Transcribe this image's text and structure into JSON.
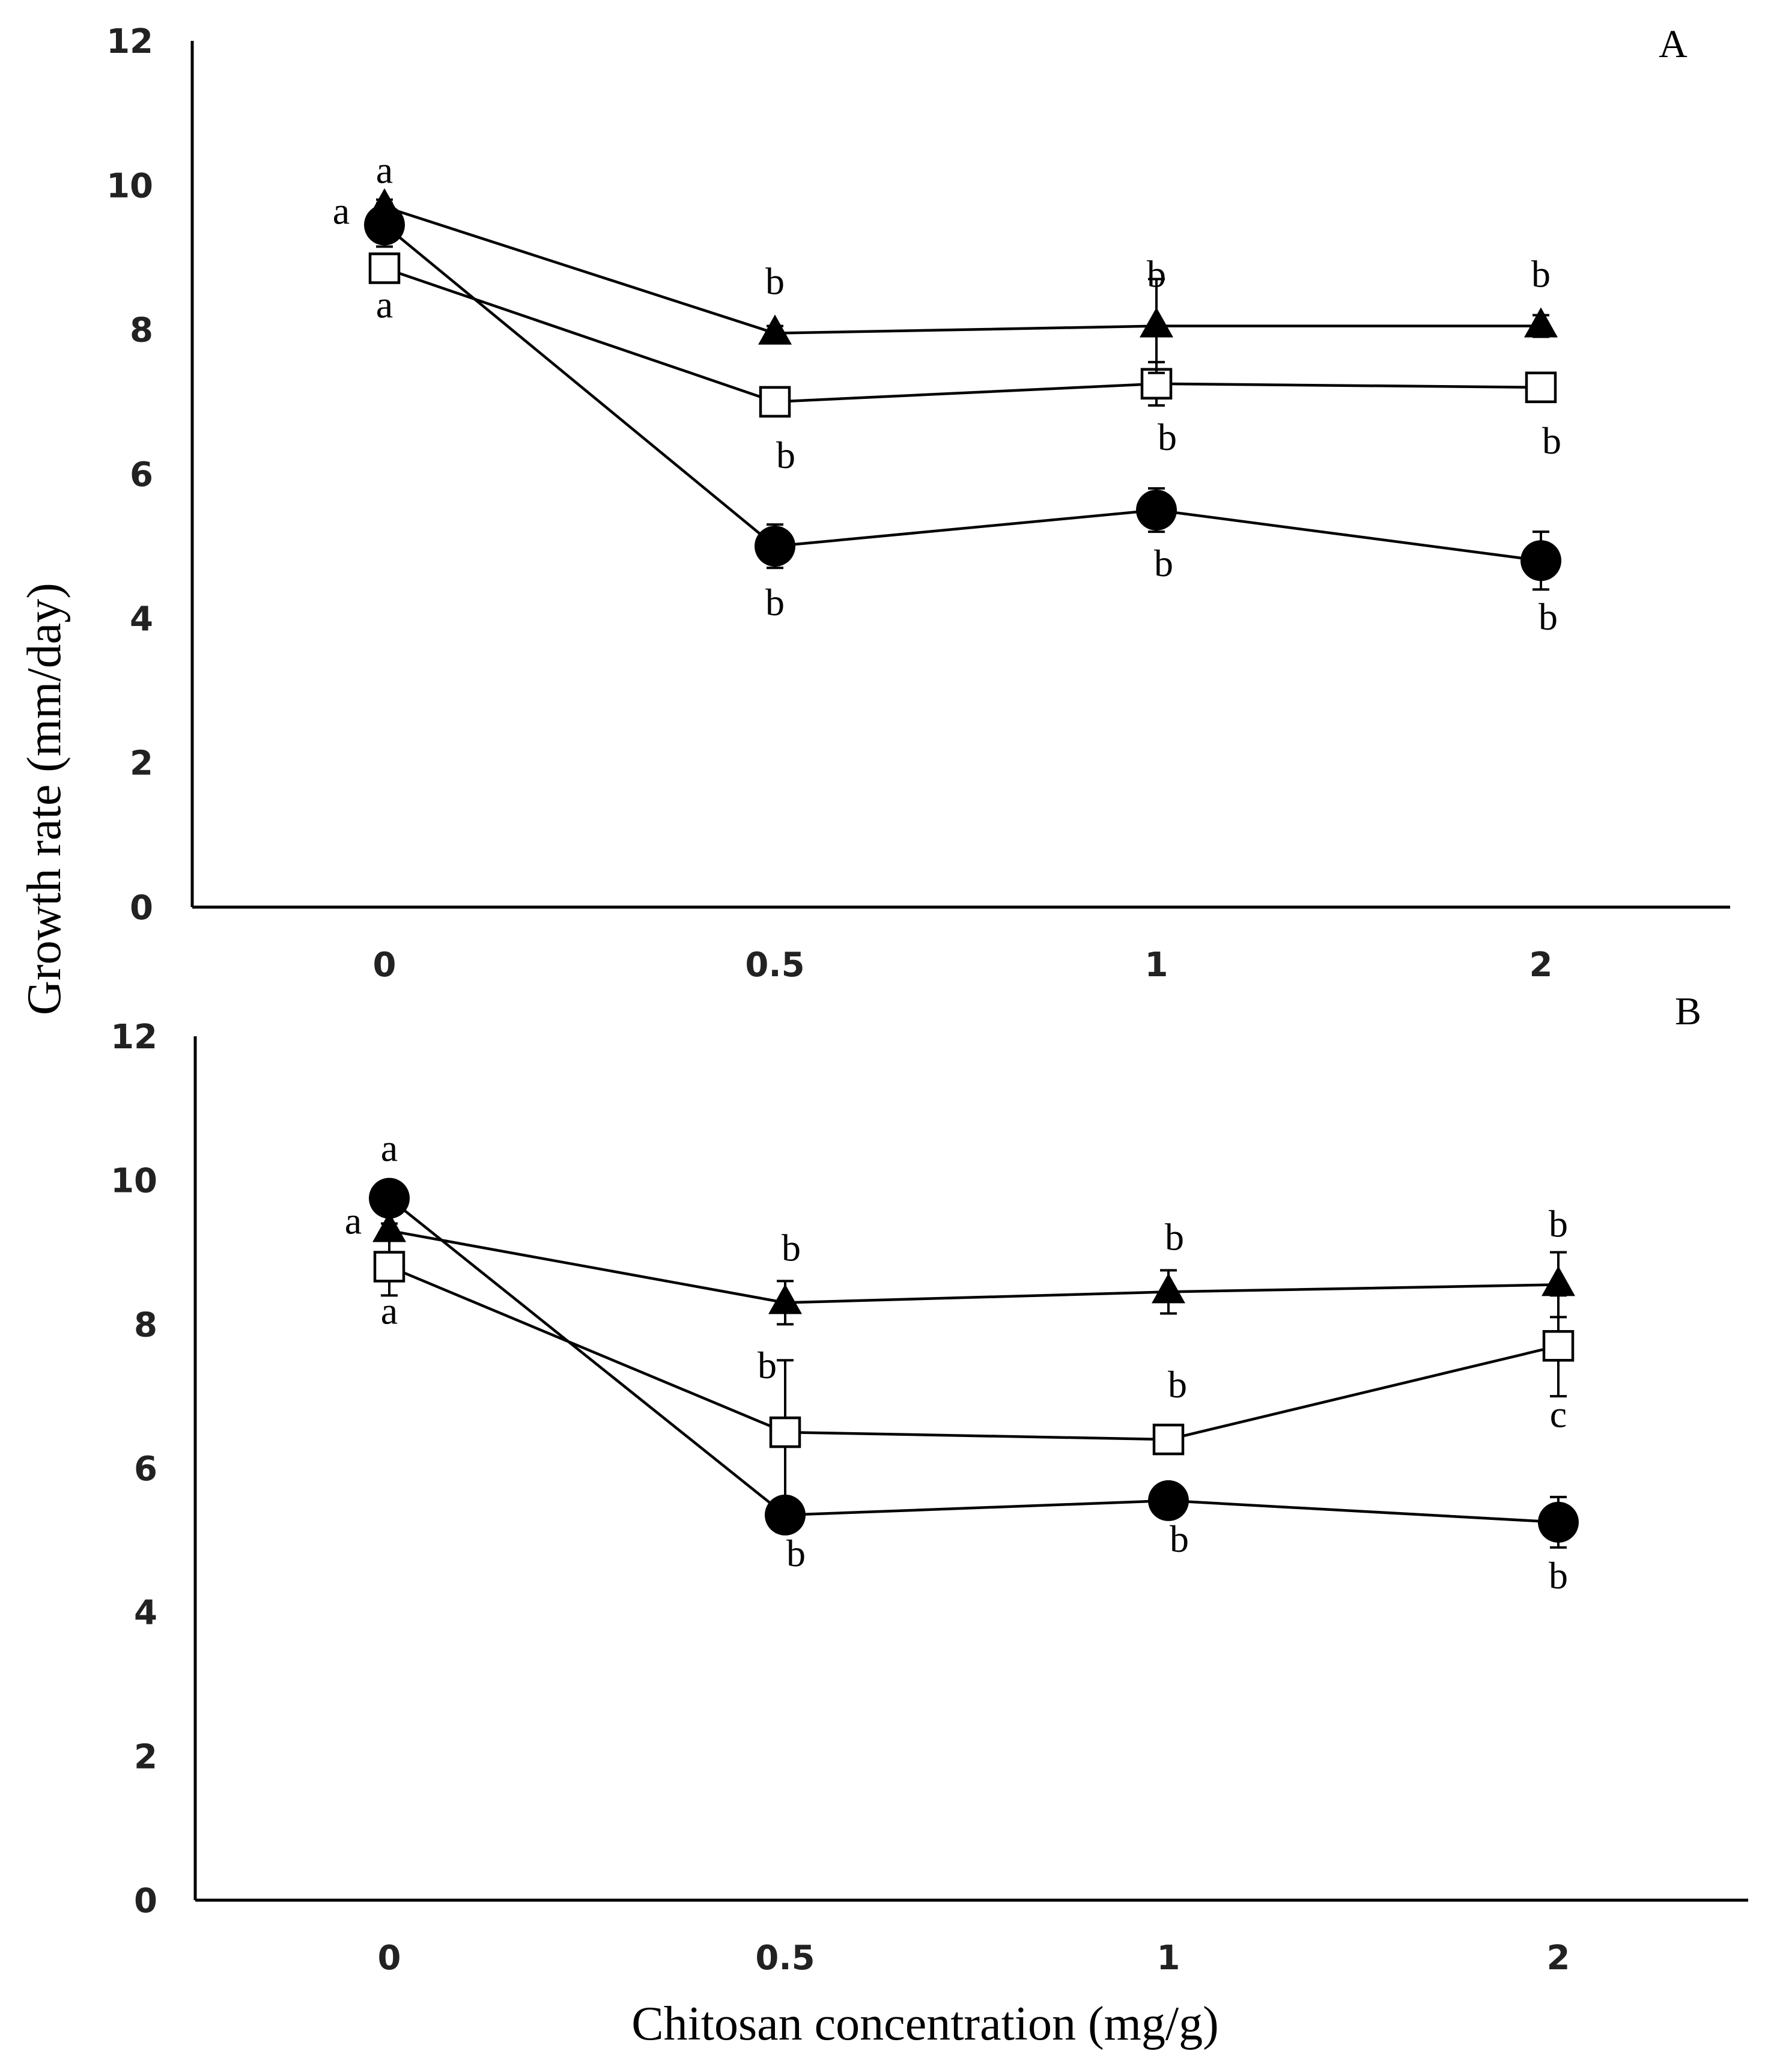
{
  "chart_data": [
    {
      "type": "line",
      "panel_label": "A",
      "categories": [
        "0",
        "0.5",
        "1",
        "2"
      ],
      "ylim": [
        0,
        12
      ],
      "yticks": [
        "0",
        "2",
        "4",
        "6",
        "8",
        "10",
        "12"
      ],
      "series": [
        {
          "name": "filled-circle",
          "marker": "circle",
          "values": [
            9.45,
            5.0,
            5.5,
            4.8
          ],
          "err": [
            0.3,
            0.3,
            0.3,
            0.4
          ],
          "letters": [
            "a",
            "b",
            "b",
            "b"
          ]
        },
        {
          "name": "open-square",
          "marker": "square",
          "values": [
            8.85,
            7.0,
            7.25,
            7.2
          ],
          "err": [
            0.15,
            0.1,
            0.3,
            0.1
          ],
          "letters": [
            "a",
            "b",
            "b",
            "b"
          ]
        },
        {
          "name": "filled-triangle",
          "marker": "triangle",
          "values": [
            9.7,
            7.95,
            8.05,
            8.05
          ],
          "err": [
            0.1,
            0.1,
            0.65,
            0.15
          ],
          "letters": [
            "a",
            "b",
            "b",
            "b"
          ]
        }
      ]
    },
    {
      "type": "line",
      "panel_label": "B",
      "categories": [
        "0",
        "0.5",
        "1",
        "2"
      ],
      "ylim": [
        0,
        12
      ],
      "yticks": [
        "0",
        "2",
        "4",
        "6",
        "8",
        "10",
        "12"
      ],
      "series": [
        {
          "name": "filled-circle",
          "marker": "circle",
          "values": [
            9.75,
            5.35,
            5.55,
            5.25
          ],
          "err": [
            0.1,
            0.2,
            0.2,
            0.35
          ],
          "letters": [
            "a",
            "b",
            "b",
            "b"
          ]
        },
        {
          "name": "open-square",
          "marker": "square",
          "values": [
            8.8,
            6.5,
            6.4,
            7.7
          ],
          "err": [
            0.4,
            1.0,
            0.2,
            0.7
          ],
          "letters": [
            "a",
            "b",
            "b",
            "c"
          ]
        },
        {
          "name": "filled-triangle",
          "marker": "triangle",
          "values": [
            9.3,
            8.3,
            8.45,
            8.55
          ],
          "err": [
            0.1,
            0.3,
            0.3,
            0.45
          ],
          "letters": [
            "a",
            "b",
            "b",
            "b"
          ]
        }
      ]
    }
  ],
  "ylabel": "Growth rate (mm/day)",
  "xlabel": "Chitosan concentration (mg/g)"
}
